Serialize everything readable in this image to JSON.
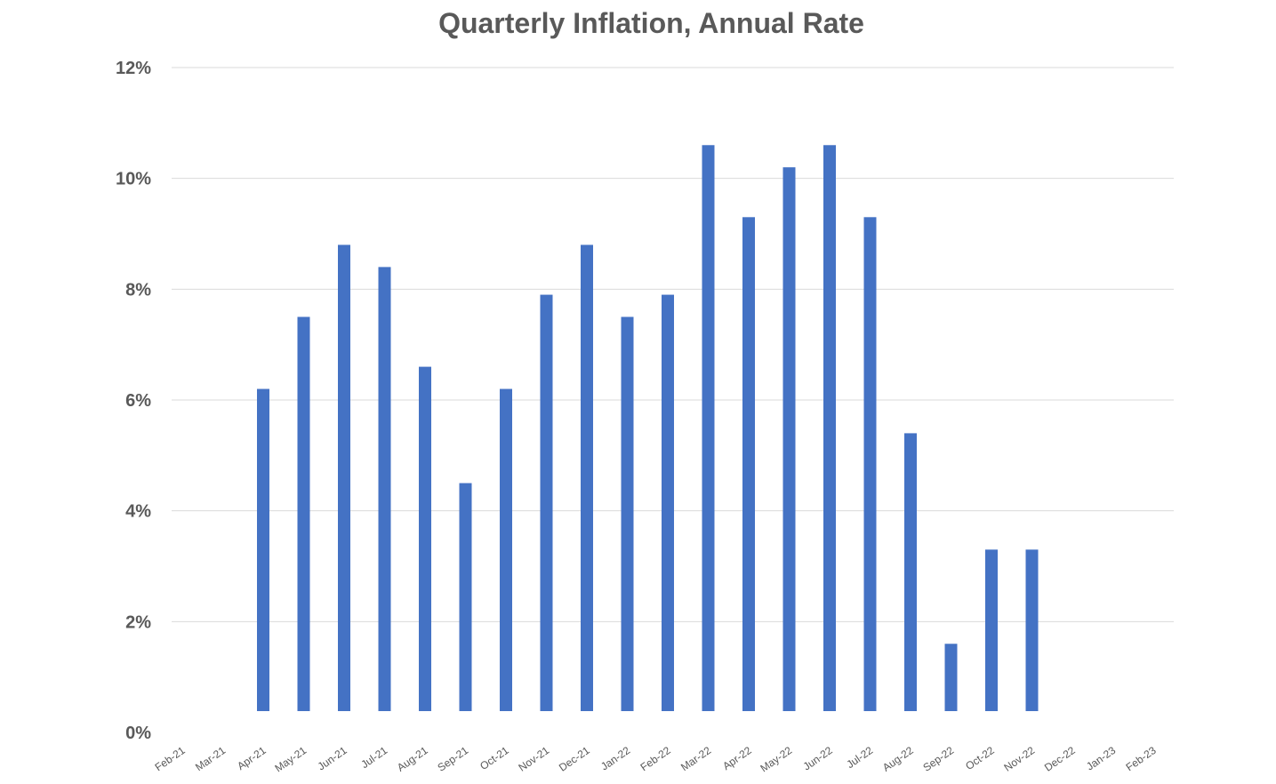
{
  "chart_data": {
    "type": "bar",
    "title": "Quarterly Inflation, Annual Rate",
    "xlabel": "",
    "ylabel": "",
    "ylim": [
      0,
      12
    ],
    "yticks": [
      "0%",
      "2%",
      "4%",
      "6%",
      "8%",
      "10%",
      "12%"
    ],
    "ytick_values": [
      0,
      2,
      4,
      6,
      8,
      10,
      12
    ],
    "grid": true,
    "legend": "none",
    "bar_color": "#4472C4",
    "categories": [
      "Feb-21",
      "Mar-21",
      "Apr-21",
      "May-21",
      "Jun-21",
      "Jul-21",
      "Aug-21",
      "Sep-21",
      "Oct-21",
      "Nov-21",
      "Dec-21",
      "Jan-22",
      "Feb-22",
      "Mar-22",
      "Apr-22",
      "May-22",
      "Jun-22",
      "Jul-22",
      "Aug-22",
      "Sep-22",
      "Oct-22",
      "Nov-22",
      "Dec-22",
      "Jan-23",
      "Feb-23"
    ],
    "values": [
      null,
      null,
      6.2,
      7.5,
      8.8,
      8.4,
      6.6,
      4.5,
      6.2,
      7.9,
      8.8,
      7.5,
      7.9,
      10.6,
      9.3,
      10.2,
      10.6,
      9.3,
      5.4,
      1.6,
      3.3,
      3.3,
      null,
      null,
      null
    ]
  }
}
